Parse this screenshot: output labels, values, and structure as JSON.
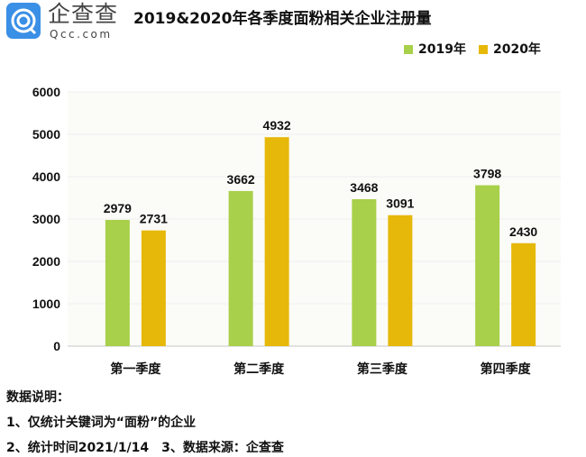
{
  "logo": {
    "cn": "企查查",
    "en": "Qcc.com"
  },
  "chart_data": {
    "type": "bar",
    "title": "2019&2020年各季度面粉相关企业注册量",
    "categories": [
      "第一季度",
      "第二季度",
      "第三季度",
      "第四季度"
    ],
    "series": [
      {
        "name": "2019年",
        "color": "#a8d04a",
        "values": [
          2979,
          3662,
          3468,
          3798
        ]
      },
      {
        "name": "2020年",
        "color": "#e6b80a",
        "values": [
          2731,
          4932,
          3091,
          2430
        ]
      }
    ],
    "ylim": [
      0,
      6000
    ],
    "yticks": [
      "0",
      "1000",
      "2000",
      "3000",
      "4000",
      "5000",
      "6000"
    ],
    "legend": "top-right",
    "xlabel": "",
    "ylabel": ""
  },
  "notes": [
    "数据说明：",
    "1、仅统计关键词为“面粉”的企业",
    "2、统计时间2021/1/14　3、数据来源：企查查"
  ]
}
